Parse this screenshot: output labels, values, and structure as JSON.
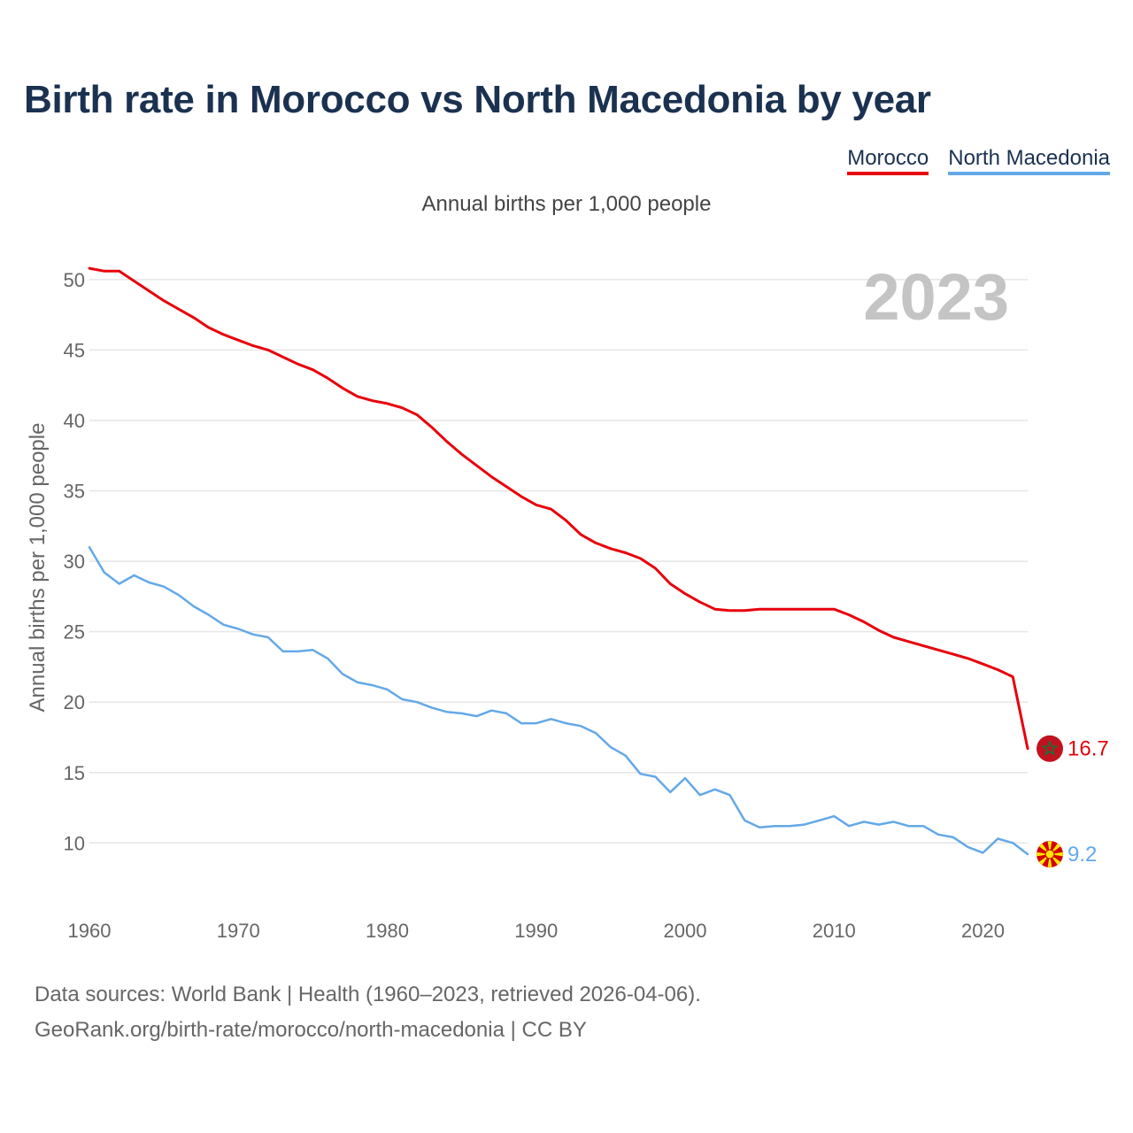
{
  "title": "Birth rate in Morocco vs North Macedonia by year",
  "legend": [
    {
      "label": "Morocco",
      "color": "#e8000b"
    },
    {
      "label": "North Macedonia",
      "color": "#64a8e8"
    }
  ],
  "subtitle": "Annual births per 1,000 people",
  "footer": {
    "line1": "Data sources: World Bank | Health (1960–2023, retrieved 2026-04-06).",
    "line2": "GeoRank.org/birth-rate/morocco/north-macedonia | CC BY"
  },
  "chart_data": {
    "type": "line",
    "title": "Birth rate in Morocco vs North Macedonia by year",
    "xlabel": "",
    "ylabel": "Annual births per 1,000 people",
    "year_watermark": "2023",
    "xlim": [
      1960,
      2023
    ],
    "ylim": [
      6.5,
      51.5
    ],
    "x_ticks": [
      1960,
      1970,
      1980,
      1990,
      2000,
      2010,
      2020
    ],
    "y_ticks": [
      10,
      15,
      20,
      25,
      30,
      35,
      40,
      45,
      50
    ],
    "grid": true,
    "x": [
      1960,
      1961,
      1962,
      1963,
      1964,
      1965,
      1966,
      1967,
      1968,
      1969,
      1970,
      1971,
      1972,
      1973,
      1974,
      1975,
      1976,
      1977,
      1978,
      1979,
      1980,
      1981,
      1982,
      1983,
      1984,
      1985,
      1986,
      1987,
      1988,
      1989,
      1990,
      1991,
      1992,
      1993,
      1994,
      1995,
      1996,
      1997,
      1998,
      1999,
      2000,
      2001,
      2002,
      2003,
      2004,
      2005,
      2006,
      2007,
      2008,
      2009,
      2010,
      2011,
      2012,
      2013,
      2014,
      2015,
      2016,
      2017,
      2018,
      2019,
      2020,
      2021,
      2022,
      2023
    ],
    "series": [
      {
        "name": "Morocco",
        "color": "#e8000b",
        "end_label": "16.7",
        "flag": "morocco-flag-icon",
        "values": [
          50.8,
          50.6,
          50.6,
          49.9,
          49.2,
          48.5,
          47.9,
          47.3,
          46.6,
          46.1,
          45.7,
          45.3,
          45.0,
          44.5,
          44.0,
          43.6,
          43.0,
          42.3,
          41.7,
          41.4,
          41.2,
          40.9,
          40.4,
          39.5,
          38.5,
          37.6,
          36.8,
          36.0,
          35.3,
          34.6,
          34.0,
          33.7,
          32.9,
          31.9,
          31.3,
          30.9,
          30.6,
          30.2,
          29.5,
          28.4,
          27.7,
          27.1,
          26.6,
          26.5,
          26.5,
          26.6,
          26.6,
          26.6,
          26.6,
          26.6,
          26.6,
          26.2,
          25.7,
          25.1,
          24.6,
          24.3,
          24.0,
          23.7,
          23.4,
          23.1,
          22.7,
          22.3,
          21.8,
          16.7
        ]
      },
      {
        "name": "North Macedonia",
        "color": "#64a8e8",
        "end_label": "9.2",
        "flag": "north-macedonia-flag-icon",
        "values": [
          31.0,
          29.2,
          28.4,
          29.0,
          28.5,
          28.2,
          27.6,
          26.8,
          26.2,
          25.5,
          25.2,
          24.8,
          24.6,
          23.6,
          23.6,
          23.7,
          23.1,
          22.0,
          21.4,
          21.2,
          20.9,
          20.2,
          20.0,
          19.6,
          19.3,
          19.2,
          19.0,
          19.4,
          19.2,
          18.5,
          18.5,
          18.8,
          18.5,
          18.3,
          17.8,
          16.8,
          16.2,
          14.9,
          14.7,
          13.6,
          14.6,
          13.4,
          13.8,
          13.4,
          11.6,
          11.1,
          11.2,
          11.2,
          11.3,
          11.6,
          11.9,
          11.2,
          11.5,
          11.3,
          11.5,
          11.2,
          11.2,
          10.6,
          10.4,
          9.7,
          9.3,
          10.3,
          10.0,
          9.2
        ]
      }
    ]
  }
}
